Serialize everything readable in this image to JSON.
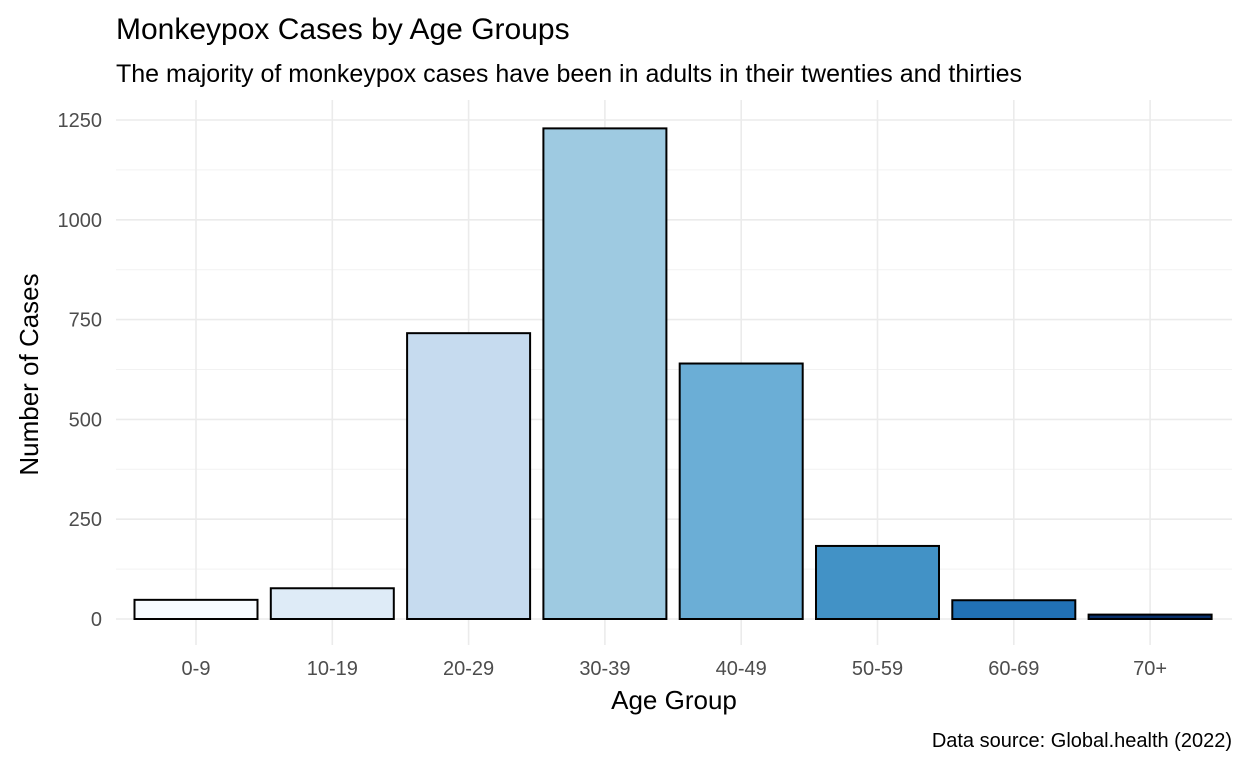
{
  "chart_data": {
    "type": "bar",
    "title": "Monkeypox Cases by Age Groups",
    "subtitle": "The majority of monkeypox cases have been in adults in their twenties and thirties",
    "caption": "Data source: Global.health (2022)",
    "xlabel": "Age Group",
    "ylabel": "Number of Cases",
    "categories": [
      "0-9",
      "10-19",
      "20-29",
      "30-39",
      "40-49",
      "50-59",
      "60-69",
      "70+"
    ],
    "values": [
      48,
      77,
      716,
      1229,
      640,
      183,
      47,
      11
    ],
    "colors": [
      "#f7fbff",
      "#deebf7",
      "#c6dbef",
      "#9ecae1",
      "#6baed6",
      "#4292c6",
      "#2171b5",
      "#08306b"
    ],
    "bar_outline": "#000000",
    "ylim": [
      0,
      1250
    ],
    "yticks": [
      0,
      250,
      500,
      750,
      1000,
      1250
    ],
    "ytick_labels": [
      "0",
      "250",
      "500",
      "750",
      "1000",
      "1250"
    ],
    "grid": true,
    "grid_color": "#ebebeb",
    "legend": "none"
  }
}
